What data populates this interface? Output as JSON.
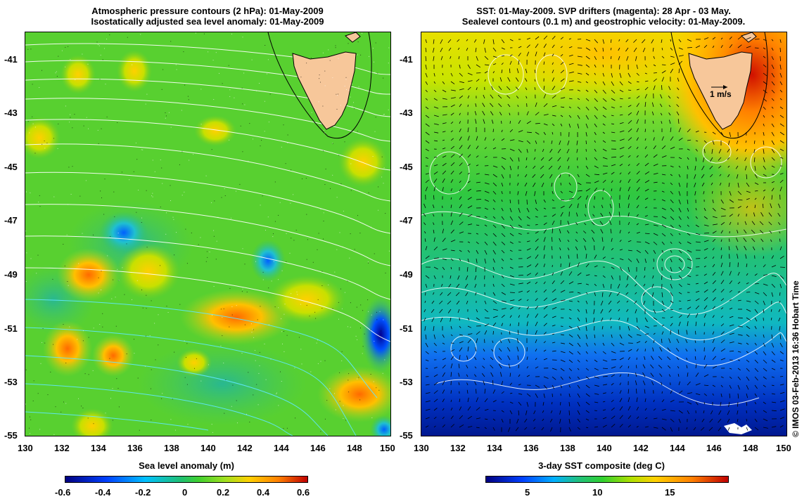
{
  "left_panel": {
    "title_line1": "Atmospheric pressure contours (2 hPa): 01-May-2009",
    "title_line2": "Isostatically adjusted sea level anomaly: 01-May-2009",
    "colorbar_label": "Sea level anomaly (m)",
    "colorbar_ticks": [
      "-0.6",
      "-0.4",
      "-0.2",
      "0",
      "0.2",
      "0.4",
      "0.6"
    ]
  },
  "right_panel": {
    "title_line1": "SST: 01-May-2009. SVP drifters (magenta): 28 Apr - 03 May.",
    "title_line2": "Sealevel contours (0.1 m) and geostrophic velocity: 01-May-2009.",
    "colorbar_label": "3-day SST composite (deg C)",
    "colorbar_ticks": [
      "5",
      "10",
      "15"
    ],
    "velocity_scale_label": "1 m/s"
  },
  "axes": {
    "lat_ticks": [
      "-41",
      "-43",
      "-45",
      "-47",
      "-49",
      "-51",
      "-53",
      "-55"
    ],
    "lon_ticks": [
      "130",
      "132",
      "134",
      "136",
      "138",
      "140",
      "142",
      "144",
      "146",
      "148",
      "150"
    ]
  },
  "credit": "© IMOS 03-Feb-2013 16:36 Hobart Time",
  "colors": {
    "sla_colormap": [
      "#00007f",
      "#0040ff",
      "#00c0ff",
      "#20c060",
      "#30d030",
      "#90e020",
      "#ffd000",
      "#ff8000",
      "#c00000"
    ],
    "sst_colormap": [
      "#00007f",
      "#0040ff",
      "#00b0ff",
      "#20c080",
      "#30d030",
      "#b0e000",
      "#ffd000",
      "#ff8000",
      "#c00000"
    ],
    "land": "#f7c79a"
  }
}
